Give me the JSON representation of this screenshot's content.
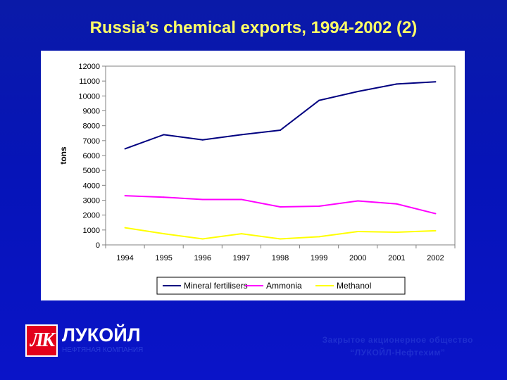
{
  "slide": {
    "title": "Russia’s chemical exports, 1994-2002 (2)"
  },
  "chart_data": {
    "type": "line",
    "x": [
      "1994",
      "1995",
      "1996",
      "1997",
      "1998",
      "1999",
      "2000",
      "2001",
      "2002"
    ],
    "ylabel": "tons",
    "xlabel": "",
    "ylim": [
      0,
      12000
    ],
    "yticks": [
      "0",
      "1000",
      "2000",
      "3000",
      "4000",
      "5000",
      "6000",
      "7000",
      "8000",
      "9000",
      "10000",
      "11000",
      "12000"
    ],
    "grid": false,
    "legend": "bottom",
    "series": [
      {
        "name": "Mineral fertilisers",
        "color": "#000080",
        "values": [
          6450,
          7400,
          7050,
          7400,
          7700,
          9700,
          10300,
          10800,
          10950
        ]
      },
      {
        "name": "Ammonia",
        "color": "#ff00ff",
        "values": [
          3300,
          3200,
          3050,
          3050,
          2550,
          2600,
          2950,
          2750,
          2100
        ]
      },
      {
        "name": "Methanol",
        "color": "#ffff00",
        "values": [
          1150,
          750,
          400,
          750,
          400,
          550,
          900,
          850,
          950
        ]
      }
    ]
  },
  "footer": {
    "logo_mark": "ЛК",
    "logo_name": "ЛУКОЙЛ",
    "logo_subtitle": "НЕФТЯНАЯ КОМПАНИЯ",
    "company_line1": "Закрытое акционерное общество",
    "company_line2": "“ЛУКОЙЛ-Нефтехим”"
  }
}
